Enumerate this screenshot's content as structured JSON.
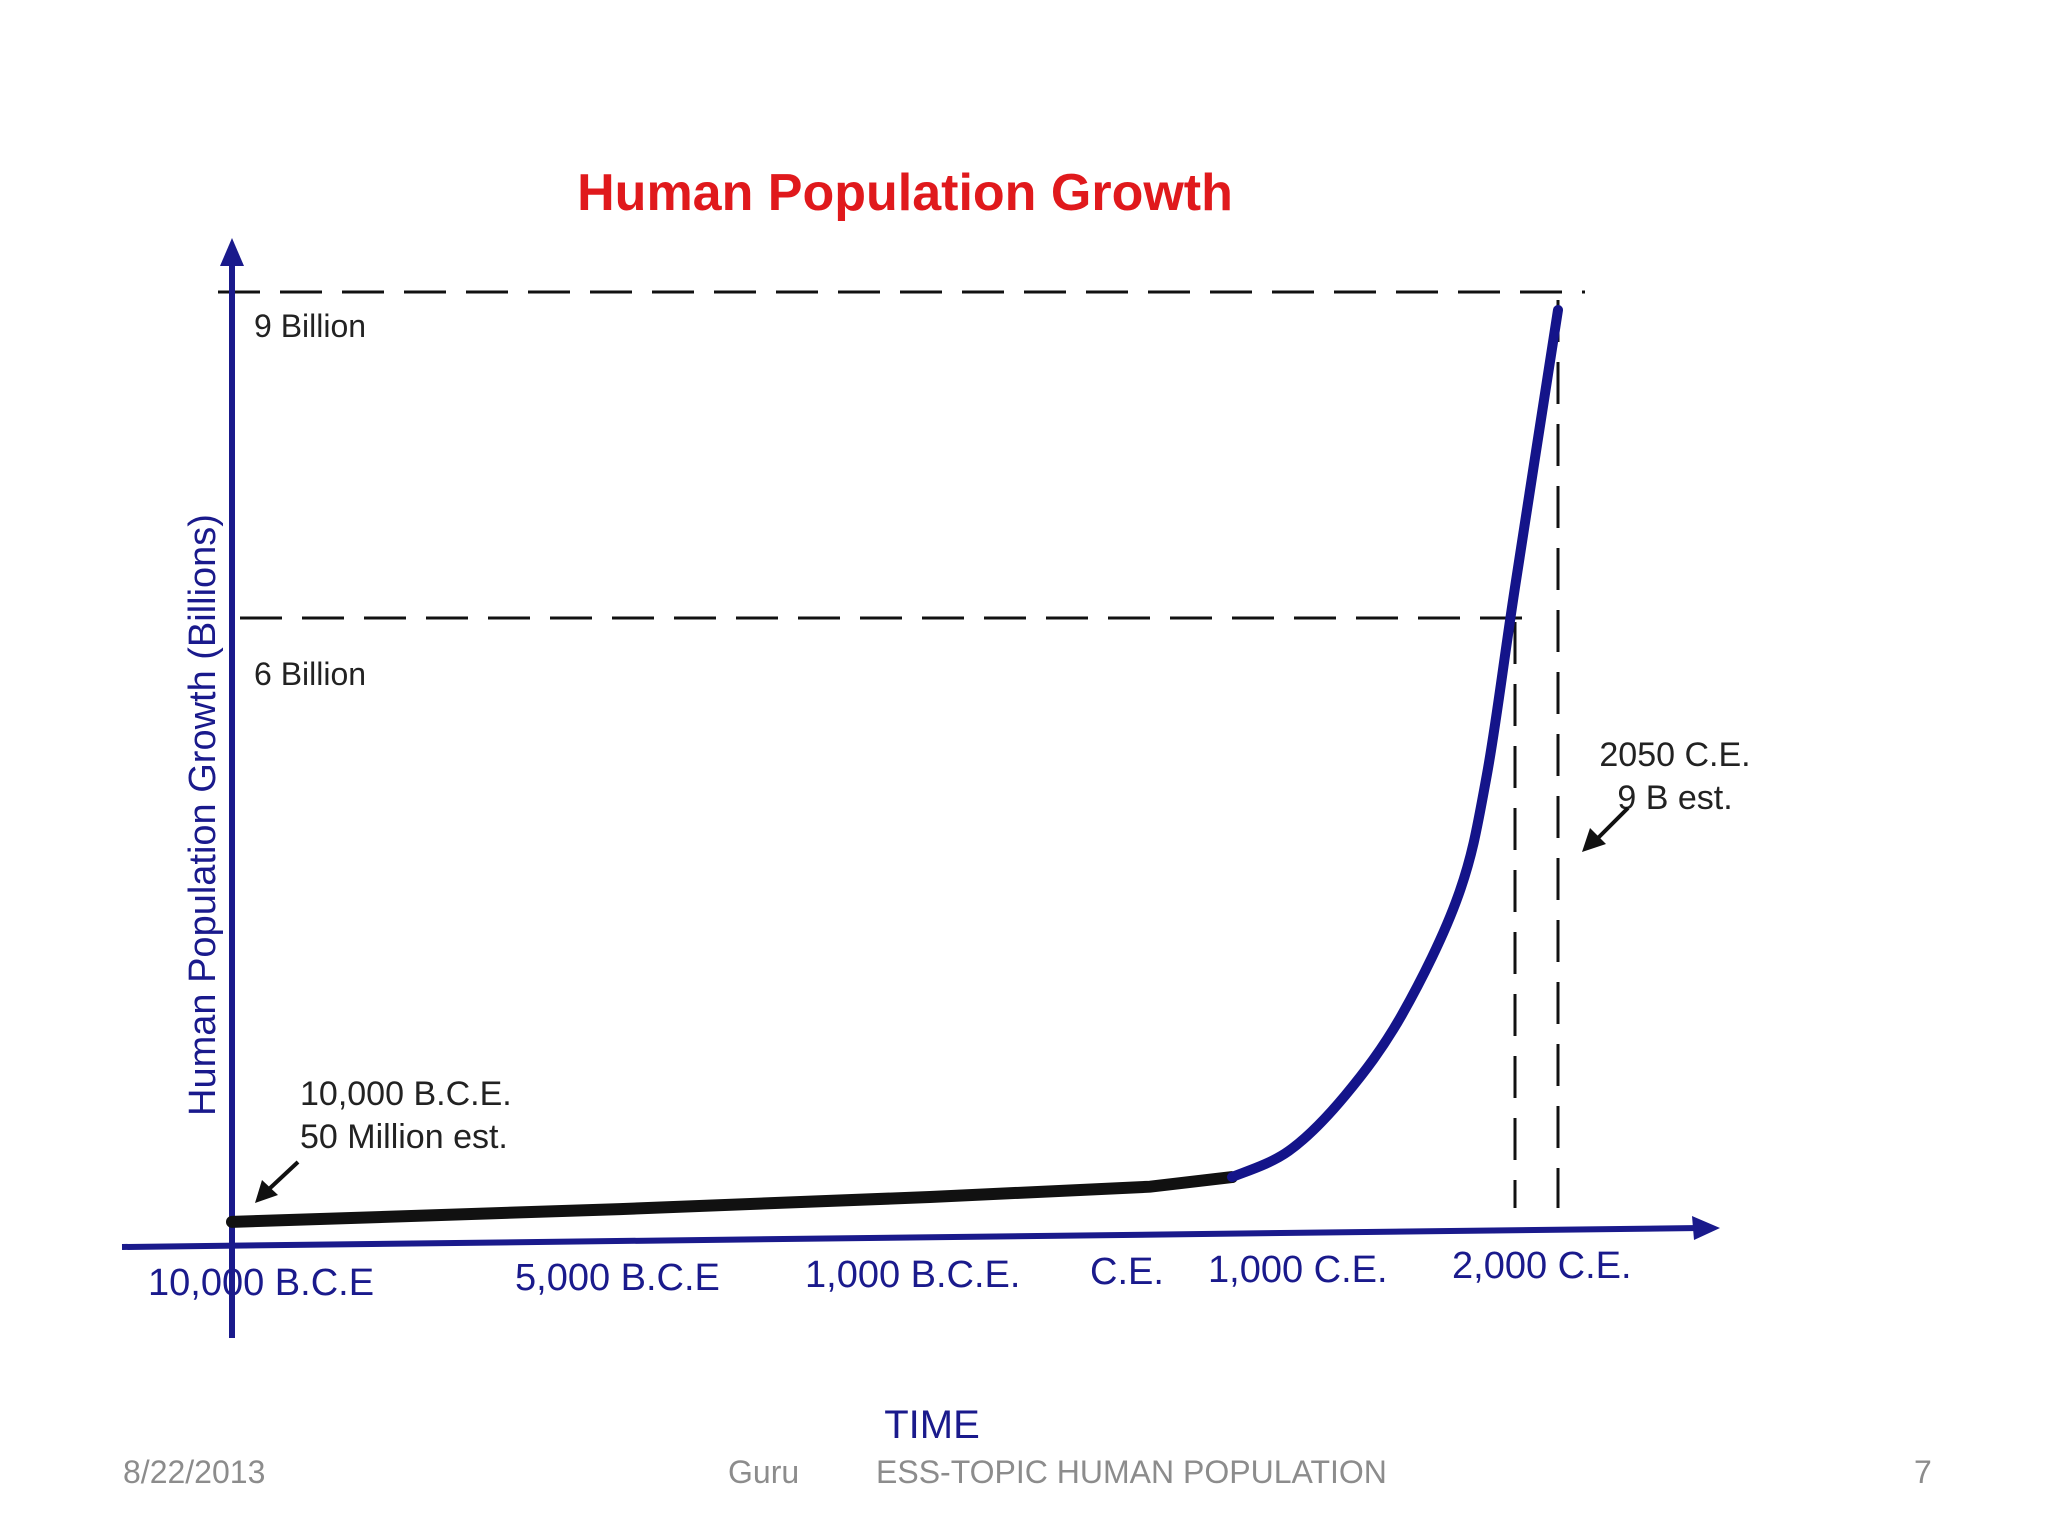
{
  "chart_data": {
    "type": "line",
    "title": "Human Population Growth",
    "xlabel": "TIME",
    "ylabel": "Human Population Growth (Billions)",
    "x_ticks": [
      "10,000 B.C.E",
      "5,000 B.C.E",
      "1,000 B.C.E.",
      "C.E.",
      "1,000 C.E.",
      "2,000 C.E."
    ],
    "reference_lines": [
      {
        "label": "9 Billion",
        "value": 9
      },
      {
        "label": "6 Billion",
        "value": 6
      }
    ],
    "annotations": [
      {
        "line1": "10,000 B.C.E.",
        "line2": "50 Million est."
      },
      {
        "line1": "2050 C.E.",
        "line2": "9 B est."
      }
    ],
    "series": [
      {
        "x": [
          -10000,
          -5000,
          -1000,
          1,
          1000,
          1200,
          1400,
          1600,
          1800,
          1900,
          2000,
          2050
        ],
        "y": [
          0.05,
          0.1,
          0.16,
          0.22,
          0.3,
          0.55,
          1.1,
          1.9,
          3.1,
          4.3,
          6.2,
          9.0
        ]
      }
    ],
    "colors": {
      "title": "#e0191c",
      "axis": "#1a1a8c",
      "curve": "#14148a"
    }
  },
  "footer": {
    "date": "8/22/2013",
    "author": "Guru",
    "topic": "ESS-TOPIC HUMAN POPULATION",
    "page": "7"
  }
}
